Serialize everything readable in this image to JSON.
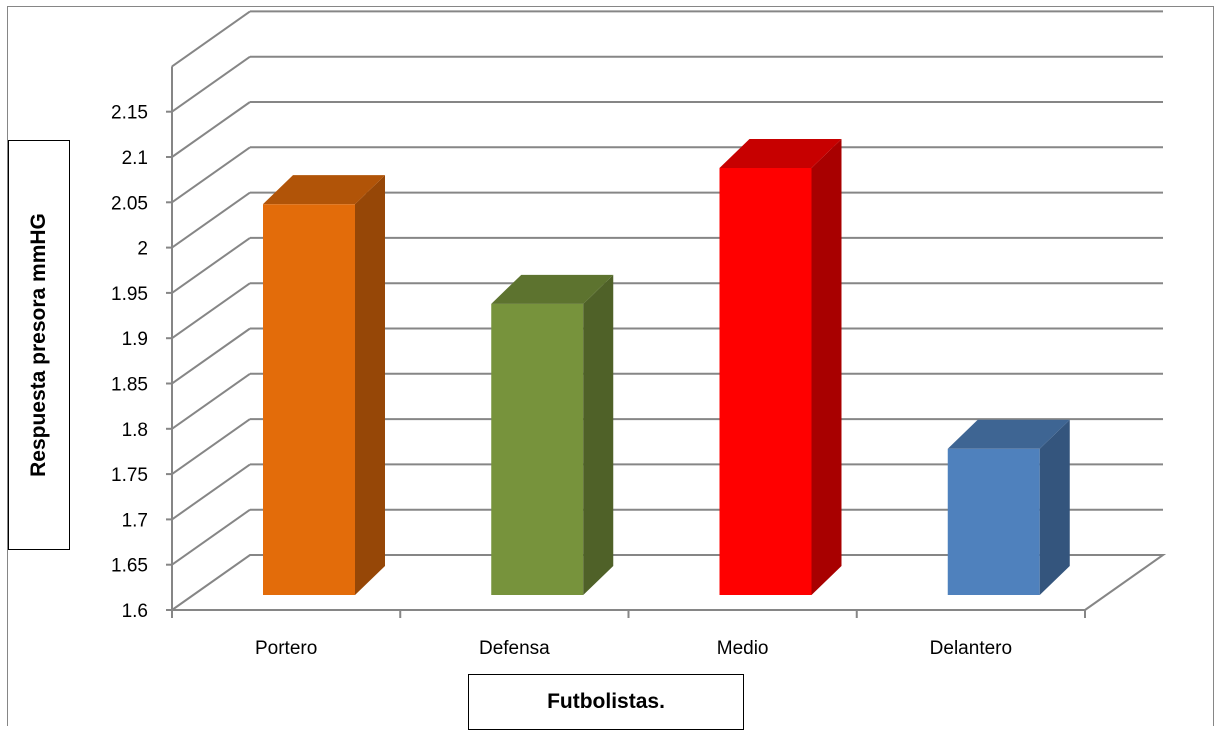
{
  "chart_data": {
    "type": "bar",
    "style": "3d-column",
    "categories": [
      "Portero",
      "Defensa",
      "Medio",
      "Delantero"
    ],
    "values": [
      2.07,
      1.96,
      2.11,
      1.8
    ],
    "bar_colors": [
      "#E36C0A",
      "#77933C",
      "#FF0000",
      "#4F81BD"
    ],
    "ylim": [
      1.6,
      2.15
    ],
    "yticks": [
      "1.6",
      "1.65",
      "1.7",
      "1.75",
      "1.8",
      "1.85",
      "1.9",
      "1.95",
      "2",
      "2.05",
      "2.1",
      "2.15"
    ],
    "xlabel": "Futbolistas.",
    "ylabel": "Respuesta presora mmHG",
    "grid": true
  }
}
